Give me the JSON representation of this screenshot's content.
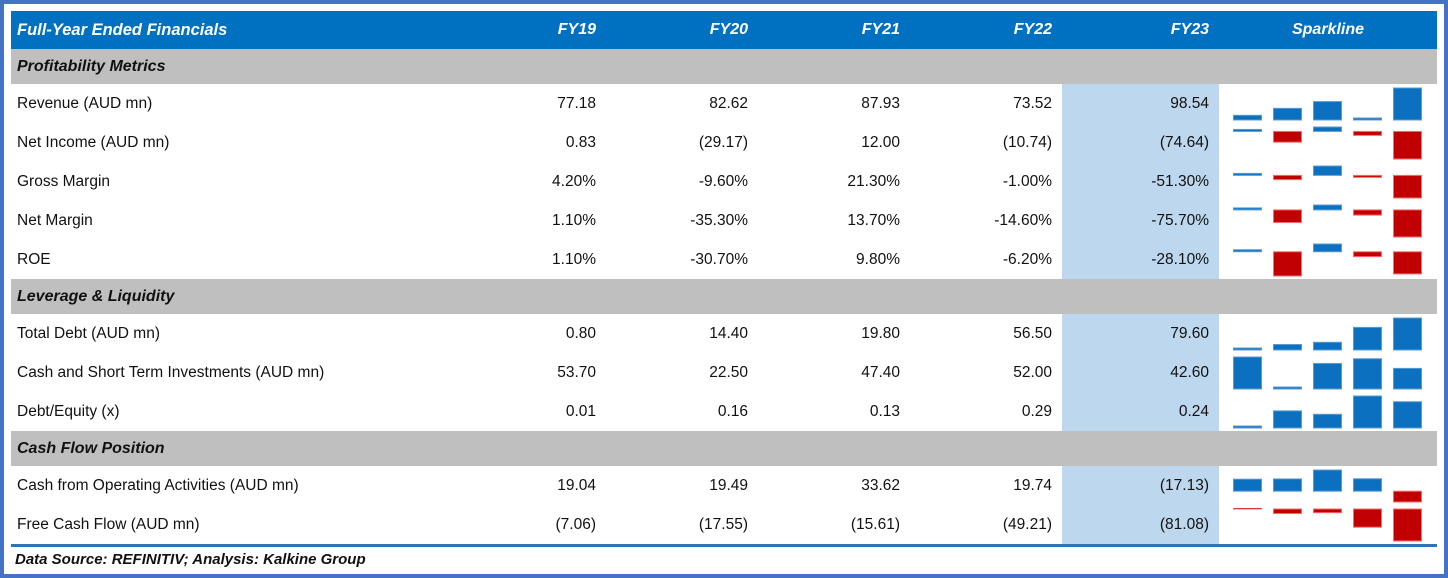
{
  "header": {
    "title": "Full-Year Ended Financials",
    "columns": [
      "FY19",
      "FY20",
      "FY21",
      "FY22",
      "FY23"
    ],
    "sparkline_label": "Sparkline"
  },
  "sections": [
    {
      "title": "Profitability Metrics",
      "rows": [
        {
          "label": "Revenue (AUD mn)",
          "display": [
            "77.18",
            "82.62",
            "87.93",
            "73.52",
            "98.54"
          ],
          "values": [
            77.18,
            82.62,
            87.93,
            73.52,
            98.54
          ]
        },
        {
          "label": "Net Income (AUD mn)",
          "display": [
            "0.83",
            "(29.17)",
            "12.00",
            "(10.74)",
            "(74.64)"
          ],
          "values": [
            0.83,
            -29.17,
            12.0,
            -10.74,
            -74.64
          ]
        },
        {
          "label": "Gross Margin",
          "display": [
            "4.20%",
            "-9.60%",
            "21.30%",
            "-1.00%",
            "-51.30%"
          ],
          "values": [
            4.2,
            -9.6,
            21.3,
            -1.0,
            -51.3
          ]
        },
        {
          "label": "Net Margin",
          "display": [
            "1.10%",
            "-35.30%",
            "13.70%",
            "-14.60%",
            "-75.70%"
          ],
          "values": [
            1.1,
            -35.3,
            13.7,
            -14.6,
            -75.7
          ]
        },
        {
          "label": "ROE",
          "display": [
            "1.10%",
            "-30.70%",
            "9.80%",
            "-6.20%",
            "-28.10%"
          ],
          "values": [
            1.1,
            -30.7,
            9.8,
            -6.2,
            -28.1
          ]
        }
      ]
    },
    {
      "title": "Leverage & Liquidity",
      "rows": [
        {
          "label": "Total Debt (AUD mn)",
          "display": [
            "0.80",
            "14.40",
            "19.80",
            "56.50",
            "79.60"
          ],
          "values": [
            0.8,
            14.4,
            19.8,
            56.5,
            79.6
          ]
        },
        {
          "label": "Cash and Short Term Investments (AUD mn)",
          "display": [
            "53.70",
            "22.50",
            "47.40",
            "52.00",
            "42.60"
          ],
          "values": [
            53.7,
            22.5,
            47.4,
            52.0,
            42.6
          ]
        },
        {
          "label": "Debt/Equity (x)",
          "display": [
            "0.01",
            "0.16",
            "0.13",
            "0.29",
            "0.24"
          ],
          "values": [
            0.01,
            0.16,
            0.13,
            0.29,
            0.24
          ]
        }
      ]
    },
    {
      "title": "Cash Flow Position",
      "rows": [
        {
          "label": "Cash from Operating Activities (AUD mn)",
          "display": [
            "19.04",
            "19.49",
            "33.62",
            "19.74",
            "(17.13)"
          ],
          "values": [
            19.04,
            19.49,
            33.62,
            19.74,
            -17.13
          ]
        },
        {
          "label": "Free Cash Flow (AUD mn)",
          "display": [
            "(7.06)",
            "(17.55)",
            "(15.61)",
            "(49.21)",
            "(81.08)"
          ],
          "values": [
            -7.06,
            -17.55,
            -15.61,
            -49.21,
            -81.08
          ]
        }
      ]
    }
  ],
  "footer": {
    "text": "Data Source: REFINITIV; Analysis: Kalkine Group"
  },
  "chart_data": {
    "type": "bar",
    "note": "win-loss column sparklines per row, FY19-FY23",
    "categories": [
      "FY19",
      "FY20",
      "FY21",
      "FY22",
      "FY23"
    ],
    "series": [
      {
        "name": "Revenue (AUD mn)",
        "values": [
          77.18,
          82.62,
          87.93,
          73.52,
          98.54
        ]
      },
      {
        "name": "Net Income (AUD mn)",
        "values": [
          0.83,
          -29.17,
          12.0,
          -10.74,
          -74.64
        ]
      },
      {
        "name": "Gross Margin %",
        "values": [
          4.2,
          -9.6,
          21.3,
          -1.0,
          -51.3
        ]
      },
      {
        "name": "Net Margin %",
        "values": [
          1.1,
          -35.3,
          13.7,
          -14.6,
          -75.7
        ]
      },
      {
        "name": "ROE %",
        "values": [
          1.1,
          -30.7,
          9.8,
          -6.2,
          -28.1
        ]
      },
      {
        "name": "Total Debt (AUD mn)",
        "values": [
          0.8,
          14.4,
          19.8,
          56.5,
          79.6
        ]
      },
      {
        "name": "Cash and Short Term Investments (AUD mn)",
        "values": [
          53.7,
          22.5,
          47.4,
          52.0,
          42.6
        ]
      },
      {
        "name": "Debt/Equity (x)",
        "values": [
          0.01,
          0.16,
          0.13,
          0.29,
          0.24
        ]
      },
      {
        "name": "Cash from Operating Activities (AUD mn)",
        "values": [
          19.04,
          19.49,
          33.62,
          19.74,
          -17.13
        ]
      },
      {
        "name": "Free Cash Flow (AUD mn)",
        "values": [
          -7.06,
          -17.55,
          -15.61,
          -49.21,
          -81.08
        ]
      }
    ],
    "legend_position": "none",
    "grid": false
  },
  "colors": {
    "header_bg": "#0070C0",
    "header_text": "#FFFFFF",
    "section_bg": "#BFBFBF",
    "fy23_highlight_bg": "#BDD7EE",
    "spark_positive_fill": "#0B70C0",
    "spark_positive_stroke": "#5B9BD5",
    "spark_negative_fill": "#C00000",
    "spark_negative_stroke": "#FF6B6B",
    "outer_border": "#4472C4",
    "footer_rule": "#2E75B6"
  }
}
